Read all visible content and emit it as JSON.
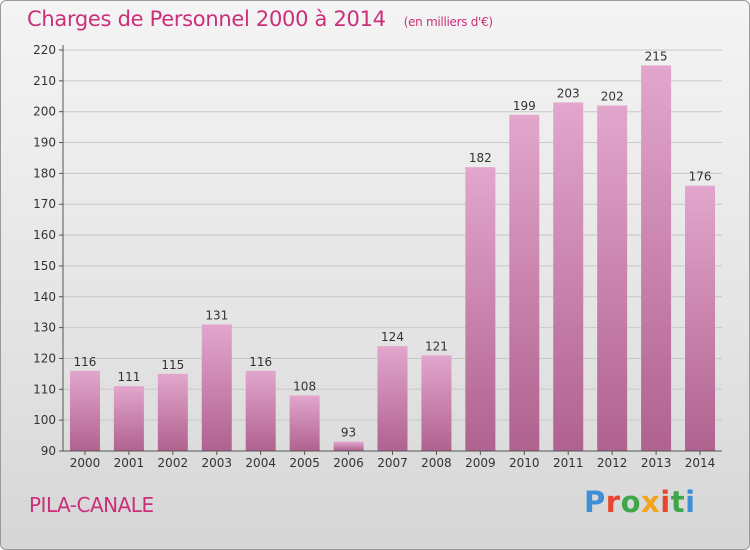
{
  "header": {
    "title": "Charges de Personnel 2000 à 2014",
    "unit": "(en milliers d'€)"
  },
  "footer": {
    "commune": "PILA-CANALE",
    "brand": "Proxiti",
    "brand_colors": [
      "#3f8fd8",
      "#e6462e",
      "#3fa64a",
      "#f2a31b",
      "#e6462e",
      "#3fa64a",
      "#3f8fd8"
    ]
  },
  "colors": {
    "accent": "#cc2f7a",
    "bar_top": "#e2a6cc",
    "bar_bottom": "#b0628f"
  },
  "chart_data": {
    "type": "bar",
    "title": "Charges de Personnel 2000 à 2014",
    "categories": [
      "2000",
      "2001",
      "2002",
      "2003",
      "2004",
      "2005",
      "2006",
      "2007",
      "2008",
      "2009",
      "2010",
      "2011",
      "2012",
      "2013",
      "2014"
    ],
    "values": [
      116,
      111,
      115,
      131,
      116,
      108,
      93,
      124,
      121,
      182,
      199,
      203,
      202,
      215,
      176
    ],
    "ylim": [
      90,
      220
    ],
    "yticks": [
      90,
      100,
      110,
      120,
      130,
      140,
      150,
      160,
      170,
      180,
      190,
      200,
      210,
      220
    ],
    "grid": true,
    "legend": "none"
  }
}
